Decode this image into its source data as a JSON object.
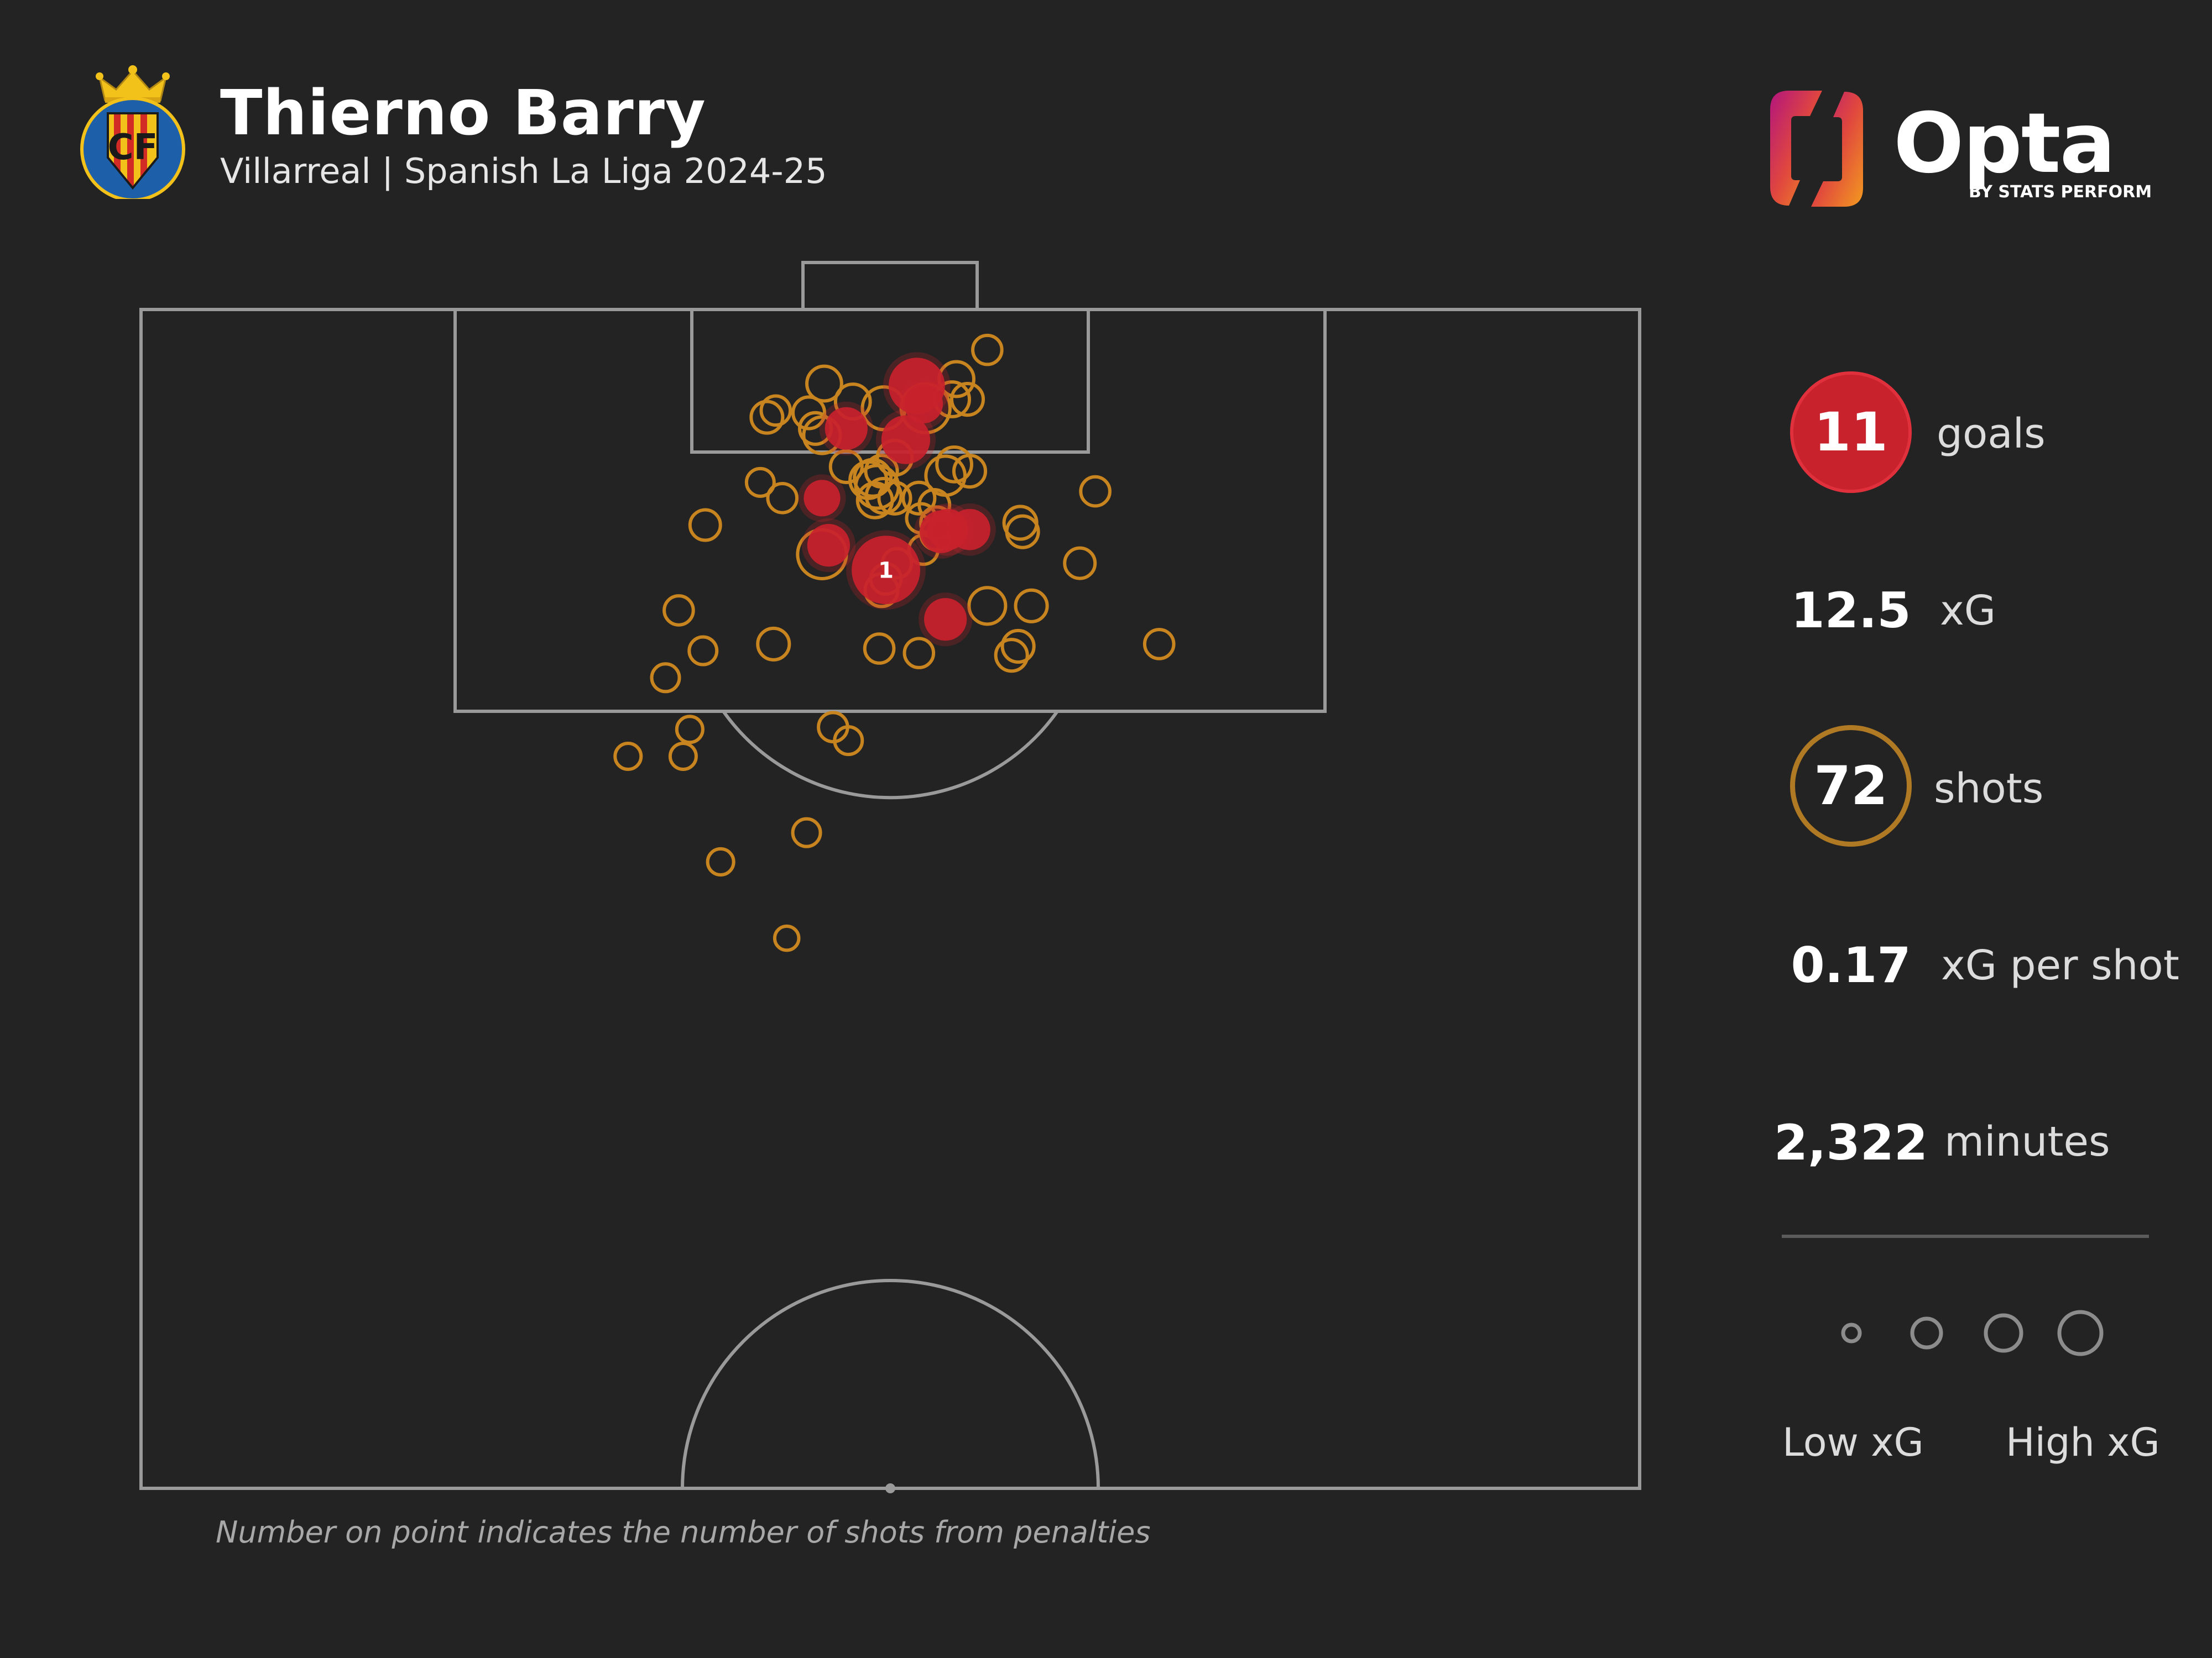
{
  "header": {
    "title": "Thierno Barry",
    "subtitle": "Villarreal | Spanish La Liga 2024-25",
    "crest_text": "CF",
    "crest_text_note": "CF"
  },
  "brand": {
    "word": "Opta",
    "sub": "BY STATS PERFORM"
  },
  "stats": {
    "goals_value": "11",
    "goals_label": "goals",
    "xg_value": "12.5",
    "xg_label": "xG",
    "shots_value": "72",
    "shots_label": "shots",
    "xg_per_shot_value": "0.17",
    "xg_per_shot_label": "xG per shot",
    "minutes_value": "2,322",
    "minutes_label": "minutes"
  },
  "legend": {
    "low_label": "Low xG",
    "high_label": "High xG"
  },
  "footnote": "Number on point indicates the number of shots from penalties",
  "colors": {
    "background": "#232323",
    "goal": "#c8222d",
    "shot": "#c7841f",
    "pitch_line": "#9a9a9a",
    "legend_circle": "#8c8c8c"
  },
  "chart_data": {
    "type": "scatter",
    "pitch": "half-pitch shot map (attacking right-to-left view, goal at top)",
    "units": "pitch meters: x across width from left touchline (0-68), y distance from goal line (0-52.5)",
    "series": [
      {
        "name": "goals",
        "points": [
          {
            "x": 35.2,
            "y": 3.4,
            "xg": 0.45,
            "goal": true
          },
          {
            "x": 34.7,
            "y": 5.8,
            "xg": 0.3,
            "goal": true
          },
          {
            "x": 32.0,
            "y": 5.3,
            "xg": 0.2,
            "goal": true
          },
          {
            "x": 30.9,
            "y": 8.4,
            "xg": 0.12,
            "goal": true
          },
          {
            "x": 31.2,
            "y": 10.5,
            "xg": 0.2,
            "goal": true
          },
          {
            "x": 33.8,
            "y": 11.6,
            "xg": 0.76,
            "goal": true,
            "penalties": 1
          },
          {
            "x": 36.3,
            "y": 9.9,
            "xg": 0.2,
            "goal": true
          },
          {
            "x": 36.6,
            "y": 9.8,
            "xg": 0.18,
            "goal": true
          },
          {
            "x": 37.6,
            "y": 9.8,
            "xg": 0.18,
            "goal": true
          },
          {
            "x": 36.5,
            "y": 13.8,
            "xg": 0.2,
            "goal": true
          },
          {
            "x": 35.5,
            "y": 4.2,
            "xg": 0.15,
            "goal": true
          }
        ]
      },
      {
        "name": "shots",
        "points": [
          {
            "x": 38.4,
            "y": 1.8,
            "xg": 0.05
          },
          {
            "x": 31.0,
            "y": 3.3,
            "xg": 0.1
          },
          {
            "x": 37.0,
            "y": 3.1,
            "xg": 0.1
          },
          {
            "x": 32.3,
            "y": 4.1,
            "xg": 0.1
          },
          {
            "x": 33.7,
            "y": 4.4,
            "xg": 0.2
          },
          {
            "x": 35.6,
            "y": 4.4,
            "xg": 0.3
          },
          {
            "x": 36.8,
            "y": 4.0,
            "xg": 0.1
          },
          {
            "x": 37.5,
            "y": 4.0,
            "xg": 0.07
          },
          {
            "x": 28.4,
            "y": 4.8,
            "xg": 0.07
          },
          {
            "x": 28.8,
            "y": 4.5,
            "xg": 0.05
          },
          {
            "x": 30.3,
            "y": 4.6,
            "xg": 0.07
          },
          {
            "x": 30.9,
            "y": 5.6,
            "xg": 0.12
          },
          {
            "x": 32.0,
            "y": 7.0,
            "xg": 0.07
          },
          {
            "x": 34.2,
            "y": 6.6,
            "xg": 0.1
          },
          {
            "x": 33.2,
            "y": 7.5,
            "xg": 0.12
          },
          {
            "x": 33.4,
            "y": 7.9,
            "xg": 0.2
          },
          {
            "x": 33.0,
            "y": 7.6,
            "xg": 0.12
          },
          {
            "x": 36.5,
            "y": 7.4,
            "xg": 0.15
          },
          {
            "x": 36.9,
            "y": 6.9,
            "xg": 0.1
          },
          {
            "x": 37.6,
            "y": 7.2,
            "xg": 0.07
          },
          {
            "x": 28.1,
            "y": 7.7,
            "xg": 0.04
          },
          {
            "x": 33.3,
            "y": 8.5,
            "xg": 0.1
          },
          {
            "x": 33.7,
            "y": 8.3,
            "xg": 0.1
          },
          {
            "x": 34.2,
            "y": 8.4,
            "xg": 0.07
          },
          {
            "x": 35.3,
            "y": 8.4,
            "xg": 0.07
          },
          {
            "x": 36.1,
            "y": 9.5,
            "xg": 0.07
          },
          {
            "x": 29.1,
            "y": 8.4,
            "xg": 0.05
          },
          {
            "x": 25.6,
            "y": 9.6,
            "xg": 0.06
          },
          {
            "x": 30.9,
            "y": 10.9,
            "xg": 0.3
          },
          {
            "x": 39.9,
            "y": 9.5,
            "xg": 0.08
          },
          {
            "x": 43.3,
            "y": 8.1,
            "xg": 0.05
          },
          {
            "x": 42.6,
            "y": 11.3,
            "xg": 0.06
          },
          {
            "x": 34.3,
            "y": 11.3,
            "xg": 0.05
          },
          {
            "x": 33.6,
            "y": 12.5,
            "xg": 0.08
          },
          {
            "x": 38.4,
            "y": 13.2,
            "xg": 0.12
          },
          {
            "x": 40.4,
            "y": 13.2,
            "xg": 0.07
          },
          {
            "x": 24.4,
            "y": 13.4,
            "xg": 0.05
          },
          {
            "x": 25.5,
            "y": 15.2,
            "xg": 0.04
          },
          {
            "x": 28.7,
            "y": 14.9,
            "xg": 0.07
          },
          {
            "x": 33.5,
            "y": 15.1,
            "xg": 0.05
          },
          {
            "x": 35.3,
            "y": 15.3,
            "xg": 0.05
          },
          {
            "x": 39.8,
            "y": 15.0,
            "xg": 0.07
          },
          {
            "x": 39.5,
            "y": 15.4,
            "xg": 0.07
          },
          {
            "x": 46.2,
            "y": 14.9,
            "xg": 0.05
          },
          {
            "x": 23.8,
            "y": 16.4,
            "xg": 0.04
          },
          {
            "x": 31.4,
            "y": 18.6,
            "xg": 0.05
          },
          {
            "x": 32.1,
            "y": 19.2,
            "xg": 0.04
          },
          {
            "x": 24.9,
            "y": 18.7,
            "xg": 0.03
          },
          {
            "x": 22.1,
            "y": 19.9,
            "xg": 0.03
          },
          {
            "x": 24.6,
            "y": 19.9,
            "xg": 0.03
          },
          {
            "x": 30.2,
            "y": 23.3,
            "xg": 0.04
          },
          {
            "x": 26.3,
            "y": 24.6,
            "xg": 0.03
          },
          {
            "x": 29.3,
            "y": 28.0,
            "xg": 0.02
          },
          {
            "x": 40.0,
            "y": 9.9,
            "xg": 0.07
          },
          {
            "x": 35.5,
            "y": 10.7,
            "xg": 0.05
          },
          {
            "x": 36.1,
            "y": 10.0,
            "xg": 0.07
          },
          {
            "x": 33.8,
            "y": 12.0,
            "xg": 0.06
          },
          {
            "x": 30.6,
            "y": 5.3,
            "xg": 0.07
          },
          {
            "x": 35.4,
            "y": 9.3,
            "xg": 0.05
          },
          {
            "x": 33.6,
            "y": 7.2,
            "xg": 0.07
          },
          {
            "x": 36.0,
            "y": 8.7,
            "xg": 0.06
          }
        ]
      }
    ],
    "annotations": [
      {
        "text": "1",
        "on": "goal at x 33.8, y 11.6",
        "meaning": "penalty shots"
      }
    ]
  }
}
